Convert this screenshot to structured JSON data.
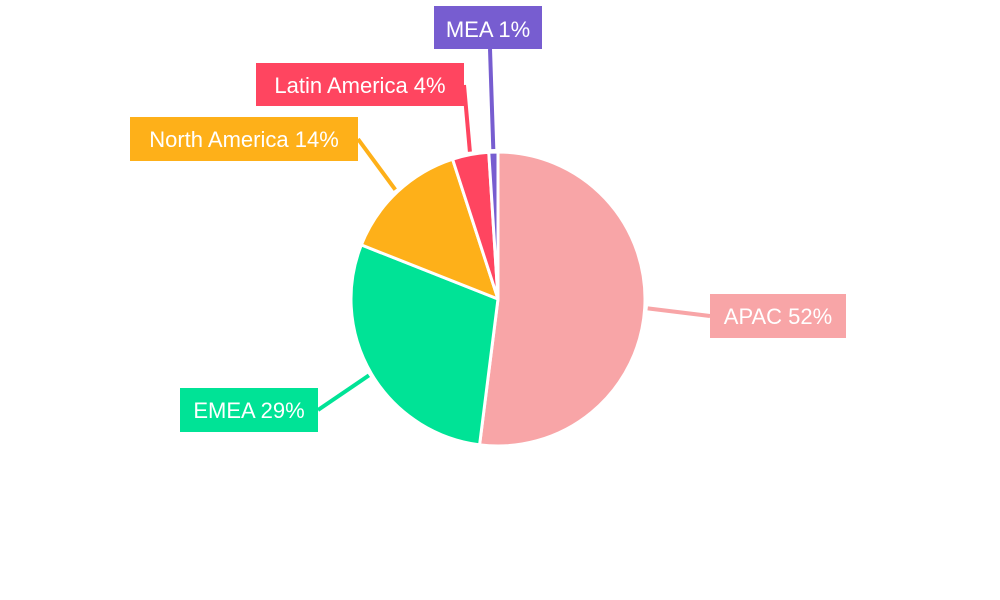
{
  "chart_data": {
    "type": "pie",
    "title": "",
    "start_angle_deg": 0,
    "direction": "clockwise",
    "categories": [
      "APAC",
      "EMEA",
      "North America",
      "Latin America",
      "MEA"
    ],
    "values": [
      52,
      29,
      14,
      4,
      1
    ],
    "unit": "%",
    "colors": [
      "#F8A5A7",
      "#00E396",
      "#FEB019",
      "#FF4560",
      "#775DD0"
    ],
    "labels": [
      "APAC 52%",
      "EMEA 29%",
      "North America 14%",
      "Latin America 4%",
      "MEA 1%"
    ],
    "legend": "none (outside data labels with leader lines)"
  },
  "slices": [
    {
      "name": "APAC",
      "value": 52,
      "label": "APAC 52%",
      "color": "#F8A5A7"
    },
    {
      "name": "EMEA",
      "value": 29,
      "label": "EMEA 29%",
      "color": "#00E396"
    },
    {
      "name": "North America",
      "value": 14,
      "label": "North America 14%",
      "color": "#FEB019"
    },
    {
      "name": "Latin America",
      "value": 4,
      "label": "Latin America 4%",
      "color": "#FF4560"
    },
    {
      "name": "MEA",
      "value": 1,
      "label": "MEA 1%",
      "color": "#775DD0"
    }
  ]
}
